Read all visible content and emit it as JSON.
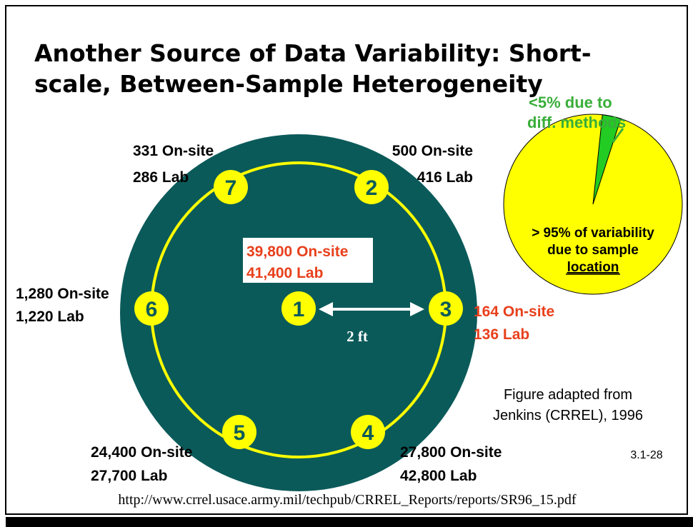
{
  "title": [
    "Another Source of Data Variability:  Short-",
    "scale, Between-Sample Heterogeneity"
  ],
  "samples": [
    {
      "id": "1",
      "onsite": "39,800 On-site",
      "lab": "41,400 Lab"
    },
    {
      "id": "2",
      "onsite": "500 On-site",
      "lab": "416 Lab"
    },
    {
      "id": "3",
      "onsite": "164 On-site",
      "lab": "136 Lab"
    },
    {
      "id": "4",
      "onsite": "27,800 On-site",
      "lab": "42,800 Lab"
    },
    {
      "id": "5",
      "onsite": "24,400 On-site",
      "lab": "27,700 Lab"
    },
    {
      "id": "6",
      "onsite": "1,280 On-site",
      "lab": "1,220 Lab"
    },
    {
      "id": "7",
      "onsite": "331 On-site",
      "lab": "286 Lab"
    }
  ],
  "distance": "2 ft",
  "pie": {
    "minor_label": [
      "<5% due to",
      "diff. methods"
    ],
    "major_label": [
      "> 95% of variability",
      "due to sample",
      "location"
    ]
  },
  "credit": [
    "Figure adapted from",
    "Jenkins (CRREL), 1996"
  ],
  "slide_number": "3.1-28",
  "url": "http://www.crrel.usace.army.mil/techpub/CRREL_Reports/reports/SR96_15.pdf"
}
